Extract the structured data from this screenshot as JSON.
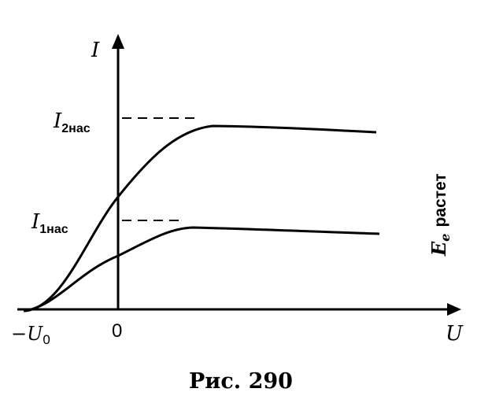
{
  "figure": {
    "y_axis_label": "I",
    "x_axis_label": "U",
    "origin_label": "0",
    "neg_u0": {
      "sign": "−",
      "main": "U",
      "sub": "0"
    },
    "sat_high": {
      "main": "I",
      "sub": "2нас"
    },
    "sat_low": {
      "main": "I",
      "sub": "1нас"
    },
    "arrow_label": {
      "main": "E",
      "sub": "e",
      "word": "растет"
    },
    "caption": "Рис. 290"
  },
  "colors": {
    "ink": "#000000",
    "background": "#ffffff"
  }
}
